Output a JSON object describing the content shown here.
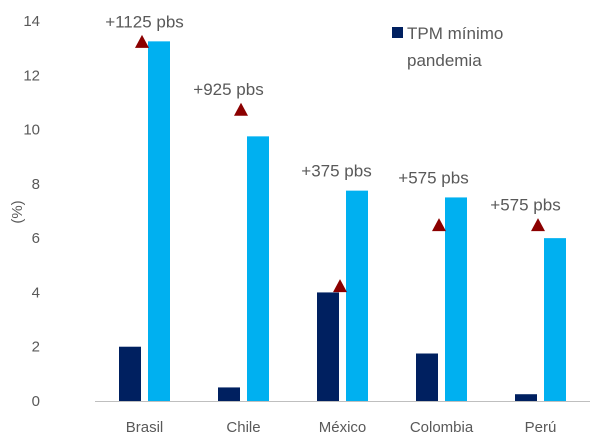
{
  "chart_data": {
    "type": "bar",
    "categories": [
      "Brasil",
      "Chile",
      "México",
      "Colombia",
      "Perú"
    ],
    "series": [
      {
        "name": "TPM mínimo pandemia",
        "values": [
          2.0,
          0.5,
          4.0,
          1.75,
          0.25
        ],
        "color": "#002060"
      },
      {
        "name": "",
        "values": [
          13.25,
          9.75,
          7.75,
          7.5,
          6.0
        ],
        "color": "#00B0F0"
      }
    ],
    "markers": {
      "values": [
        13.25,
        10.75,
        4.25,
        6.5,
        6.5
      ],
      "color": "#8B0000"
    },
    "annotations": [
      "+1125 pbs",
      "+925 pbs",
      "+375 pbs",
      "+575 pbs",
      "+575 pbs"
    ],
    "ylabel": "(%)",
    "ylim": [
      0,
      14
    ],
    "yticks": [
      0,
      2,
      4,
      6,
      8,
      10,
      12,
      14
    ],
    "legend": {
      "label_line1": "TPM mínimo",
      "label_line2": "pandemia"
    },
    "grid": false,
    "legend_position": "top-right"
  }
}
